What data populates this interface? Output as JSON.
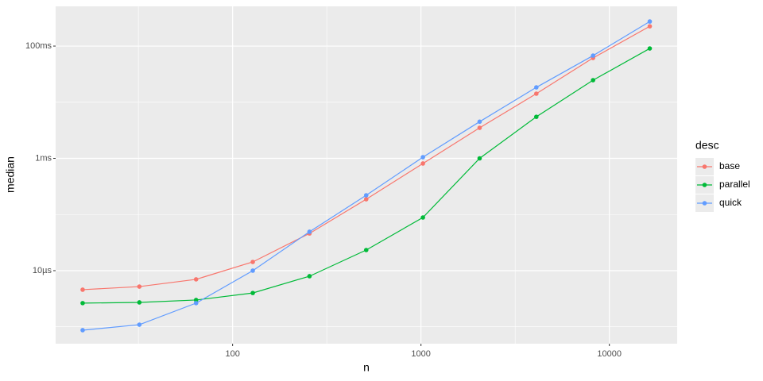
{
  "chart_data": {
    "type": "line",
    "x_label": "n",
    "y_label": "median",
    "legend_title": "desc",
    "x": [
      16,
      32,
      64,
      128,
      256,
      512,
      1024,
      2048,
      4096,
      8192,
      16384
    ],
    "series": [
      {
        "name": "base",
        "color": "#F8766D",
        "values": [
          4.58e-06,
          5.2e-06,
          7e-06,
          1.43e-05,
          4.6e-05,
          0.000187,
          0.00081,
          0.0035,
          0.0142,
          0.0614,
          0.225
        ]
      },
      {
        "name": "parallel",
        "color": "#00BA38",
        "values": [
          2.64e-06,
          2.72e-06,
          3e-06,
          4e-06,
          7.96e-06,
          2.33e-05,
          8.85e-05,
          0.001,
          0.0055,
          0.0247,
          0.0907
        ]
      },
      {
        "name": "quick",
        "color": "#619CFF",
        "values": [
          8.7e-07,
          1.09e-06,
          2.64e-06,
          1e-05,
          4.93e-05,
          0.00022,
          0.00105,
          0.0045,
          0.0184,
          0.0676,
          0.274
        ]
      }
    ],
    "xlog": true,
    "ylog": true,
    "xlim": [
      11.5,
      22900
    ],
    "xticks": [
      100,
      1000,
      10000
    ],
    "ylim": [
      5e-07,
      0.51
    ],
    "yticks": [
      {
        "value": 1e-05,
        "label": "10µs"
      },
      {
        "value": 0.001,
        "label": "1ms"
      },
      {
        "value": 0.1,
        "label": "100ms"
      }
    ],
    "grid": true,
    "legend": "right"
  }
}
